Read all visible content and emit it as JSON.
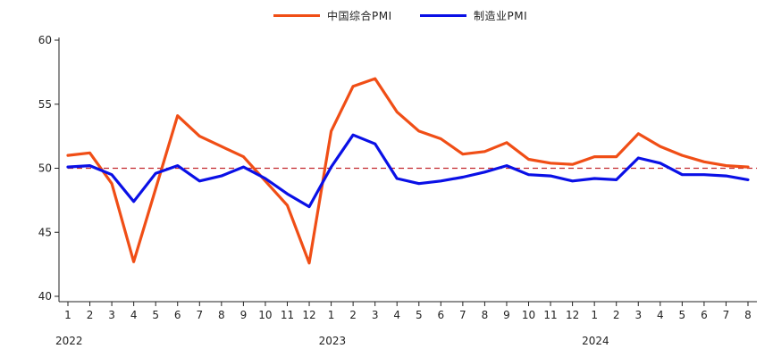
{
  "chart_data": {
    "type": "line",
    "title": "",
    "xlabel": "",
    "ylabel": "",
    "ylim": [
      40,
      60
    ],
    "yticks": [
      40,
      45,
      50,
      55,
      60
    ],
    "reference_line": {
      "value": 50,
      "color": "#c2272d",
      "style": "dashed"
    },
    "x_tick_labels": [
      "1",
      "2",
      "3",
      "4",
      "5",
      "6",
      "7",
      "8",
      "9",
      "10",
      "11",
      "12",
      "1",
      "2",
      "3",
      "4",
      "5",
      "6",
      "7",
      "8",
      "9",
      "10",
      "11",
      "12",
      "1",
      "2",
      "3",
      "4",
      "5",
      "6",
      "7",
      "8"
    ],
    "year_labels": [
      {
        "label": "2022",
        "index": 0
      },
      {
        "label": "2023",
        "index": 12
      },
      {
        "label": "2024",
        "index": 24
      }
    ],
    "series": [
      {
        "name": "中国综合PMI",
        "color": "#f04e16",
        "values": [
          51.0,
          51.2,
          48.8,
          42.7,
          48.4,
          54.1,
          52.5,
          51.7,
          50.9,
          49.0,
          47.1,
          42.6,
          52.9,
          56.4,
          57.0,
          54.4,
          52.9,
          52.3,
          51.1,
          51.3,
          52.0,
          50.7,
          50.4,
          50.3,
          50.9,
          50.9,
          52.7,
          51.7,
          51.0,
          50.5,
          50.2,
          50.1
        ]
      },
      {
        "name": "制造业PMI",
        "color": "#0a10e6",
        "values": [
          50.1,
          50.2,
          49.5,
          47.4,
          49.6,
          50.2,
          49.0,
          49.4,
          50.1,
          49.2,
          48.0,
          47.0,
          50.1,
          52.6,
          51.9,
          49.2,
          48.8,
          49.0,
          49.3,
          49.7,
          50.2,
          49.5,
          49.4,
          49.0,
          49.2,
          49.1,
          50.8,
          50.4,
          49.5,
          49.5,
          49.4,
          49.1
        ]
      }
    ]
  }
}
